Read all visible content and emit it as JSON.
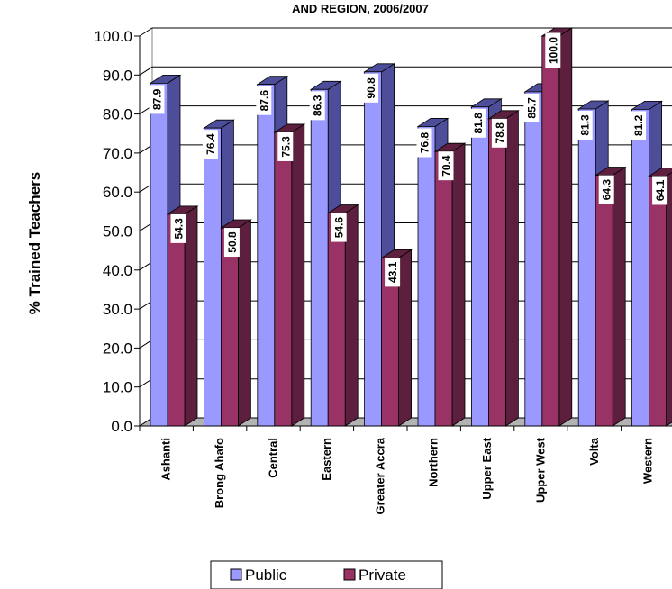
{
  "chart_data": {
    "type": "bar",
    "title": "AND REGION, 2006/2007",
    "ylabel": "% Trained Teachers",
    "xlabel": "",
    "ylim": [
      0,
      100
    ],
    "yticks": [
      "0.0",
      "10.0",
      "20.0",
      "30.0",
      "40.0",
      "50.0",
      "60.0",
      "70.0",
      "80.0",
      "90.0",
      "100.0"
    ],
    "categories": [
      "Ashanti",
      "Brong Ahafo",
      "Central",
      "Eastern",
      "Greater Accra",
      "Northern",
      "Upper East",
      "Upper West",
      "Volta",
      "Western"
    ],
    "series": [
      {
        "name": "Public",
        "values": [
          87.9,
          76.4,
          87.6,
          86.3,
          90.8,
          76.8,
          81.8,
          85.7,
          81.3,
          81.2
        ],
        "color": "#9999ff",
        "side_color": "#4d4d99"
      },
      {
        "name": "Private",
        "values": [
          54.3,
          50.8,
          75.3,
          54.6,
          43.1,
          70.4,
          78.8,
          100.0,
          64.3,
          64.1
        ],
        "color": "#993366",
        "side_color": "#5c1f3d"
      }
    ],
    "grid": true,
    "legend_position": "bottom",
    "style": "3d-bar"
  }
}
